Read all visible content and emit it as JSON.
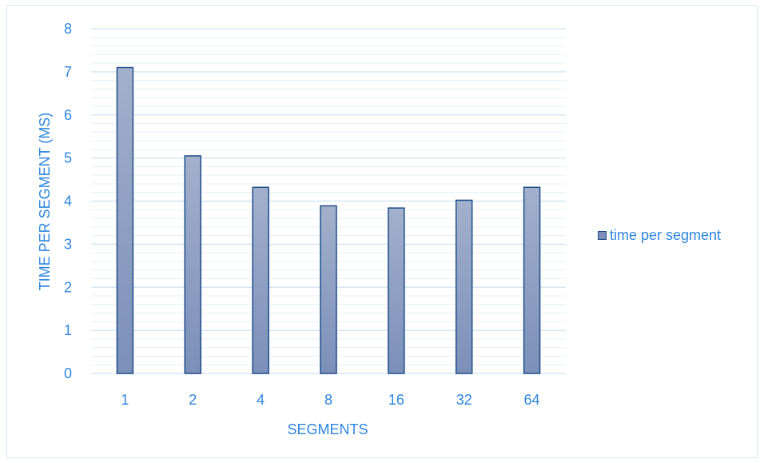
{
  "chart_data": {
    "type": "bar",
    "categories": [
      "1",
      "2",
      "4",
      "8",
      "16",
      "32",
      "64"
    ],
    "series": [
      {
        "name": "time per segment",
        "values": [
          7.1,
          5.05,
          4.32,
          3.89,
          3.84,
          4.02,
          4.32
        ]
      }
    ],
    "title": "",
    "xlabel": "SEGMENTS",
    "ylabel": "TIME PER SEGMENT (MS)",
    "ylim": [
      0,
      8
    ],
    "yticks": [
      "0",
      "1",
      "2",
      "3",
      "4",
      "5",
      "6",
      "7",
      "8"
    ],
    "grid": true,
    "legend_position": "right"
  },
  "colors": {
    "bar_fill_top": "#a3b0cc",
    "bar_fill_bottom": "#7b8fb9",
    "bar_stroke": "#1f4e8c",
    "text": "#2e86de",
    "grid_major": "#cfe3f0",
    "grid_minor": "#e6f0f7",
    "frame": "#d6e6f0"
  }
}
